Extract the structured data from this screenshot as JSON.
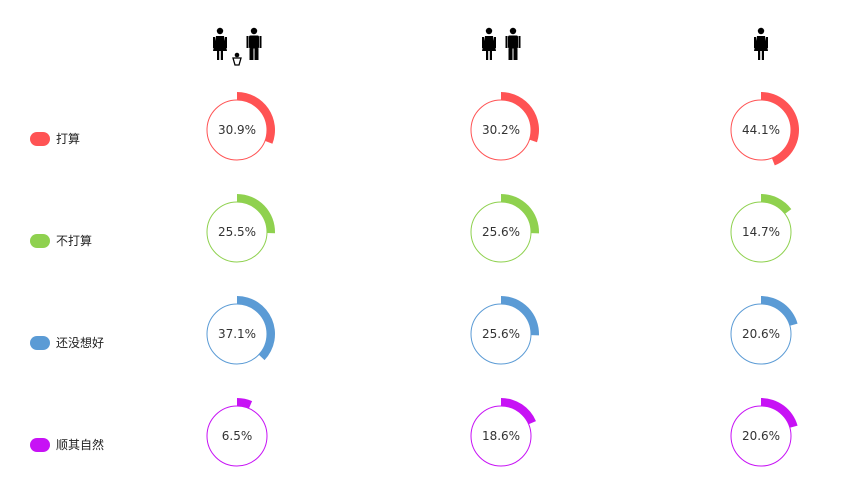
{
  "chart_data": {
    "type": "pie",
    "columns": [
      {
        "icon": "couple-with-baby-icon"
      },
      {
        "icon": "couple-icon"
      },
      {
        "icon": "woman-icon"
      }
    ],
    "categories": [
      "打算",
      "不打算",
      "还没想好",
      "顺其自然"
    ],
    "colors": [
      "#ff5354",
      "#8fd14f",
      "#5b9bd5",
      "#c712f5"
    ],
    "series": [
      {
        "values": [
          30.9,
          25.5,
          37.1,
          6.5
        ],
        "labels": [
          "30.9%",
          "25.5%",
          "37.1%",
          "6.5%"
        ]
      },
      {
        "values": [
          30.2,
          25.6,
          25.6,
          18.6
        ],
        "labels": [
          "30.2%",
          "25.6%",
          "25.6%",
          "18.6%"
        ]
      },
      {
        "values": [
          44.1,
          14.7,
          20.6,
          20.6
        ],
        "labels": [
          "44.1%",
          "14.7%",
          "20.6%",
          "20.6%"
        ]
      }
    ],
    "unit": "%"
  }
}
